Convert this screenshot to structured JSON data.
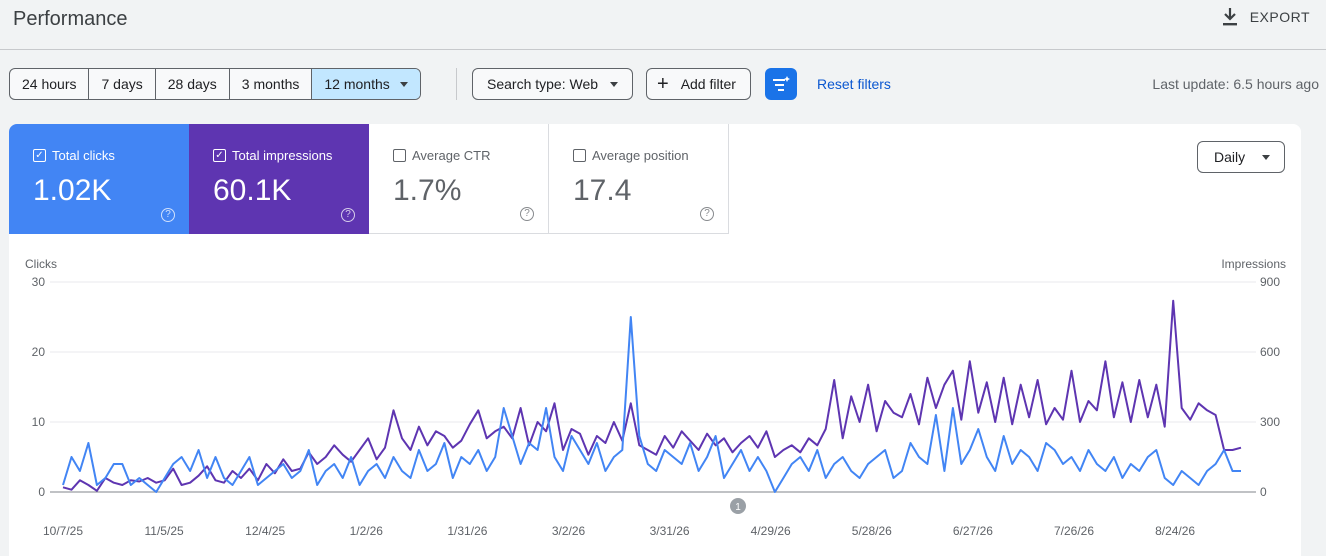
{
  "header": {
    "title": "Performance",
    "export_label": "EXPORT",
    "export_icon": "download-icon"
  },
  "toolbar": {
    "date_ranges": [
      "24 hours",
      "7 days",
      "28 days",
      "3 months",
      "12 months"
    ],
    "selected_range": "12 months",
    "search_type": "Search type: Web",
    "add_filter": "Add filter",
    "reset_filters": "Reset filters",
    "last_update": "Last update: 6.5 hours ago"
  },
  "metrics": {
    "clicks": {
      "label": "Total clicks",
      "value": "1.02K",
      "checked": true,
      "color": "#4285f4"
    },
    "impressions": {
      "label": "Total impressions",
      "value": "60.1K",
      "checked": true,
      "color": "#5e35b1"
    },
    "ctr": {
      "label": "Average CTR",
      "value": "1.7%",
      "checked": false
    },
    "position": {
      "label": "Average position",
      "value": "17.4",
      "checked": false
    }
  },
  "granularity": "Daily",
  "chart_data": {
    "type": "line",
    "left_axis_label": "Clicks",
    "right_axis_label": "Impressions",
    "left_ticks": [
      "30",
      "20",
      "10",
      "0"
    ],
    "right_ticks": [
      "900",
      "600",
      "300",
      "0"
    ],
    "ylim_left": [
      0,
      30
    ],
    "ylim_right": [
      0,
      900
    ],
    "x_ticks": [
      "10/7/25",
      "11/5/25",
      "12/4/25",
      "1/2/26",
      "1/31/26",
      "3/2/26",
      "3/31/26",
      "4/29/26",
      "5/28/26",
      "6/27/26",
      "7/26/26",
      "8/24/26"
    ],
    "annotation": "1",
    "grid": true,
    "series": [
      {
        "name": "Clicks",
        "color": "#4285f4",
        "values": [
          1,
          5,
          3,
          7,
          1,
          2,
          4,
          4,
          1,
          2,
          1,
          0,
          2,
          4,
          5,
          3,
          6,
          2,
          5,
          2,
          1,
          3,
          5,
          1,
          2,
          3,
          4,
          2,
          3,
          6,
          1,
          3,
          4,
          2,
          5,
          1,
          3,
          4,
          2,
          5,
          3,
          2,
          6,
          3,
          4,
          7,
          2,
          5,
          4,
          6,
          3,
          5,
          12,
          8,
          4,
          7,
          6,
          12,
          5,
          3,
          8,
          6,
          4,
          7,
          3,
          5,
          6,
          25,
          8,
          4,
          3,
          6,
          5,
          4,
          7,
          3,
          5,
          8,
          2,
          4,
          6,
          3,
          5,
          3,
          0,
          2,
          4,
          5,
          3,
          6,
          2,
          4,
          5,
          3,
          2,
          4,
          5,
          6,
          2,
          3,
          7,
          5,
          4,
          11,
          3,
          12,
          4,
          6,
          9,
          5,
          3,
          8,
          4,
          6,
          5,
          3,
          7,
          6,
          4,
          5,
          3,
          6,
          4,
          3,
          5,
          2,
          4,
          3,
          5,
          6,
          2,
          1,
          3,
          2,
          1,
          3,
          4,
          6,
          3,
          3
        ]
      },
      {
        "name": "Impressions",
        "color": "#5e35b1",
        "values": [
          20,
          10,
          50,
          30,
          5,
          60,
          40,
          30,
          50,
          45,
          60,
          40,
          50,
          100,
          30,
          40,
          70,
          110,
          50,
          40,
          90,
          60,
          100,
          50,
          120,
          80,
          140,
          90,
          100,
          170,
          120,
          150,
          200,
          160,
          130,
          180,
          230,
          140,
          190,
          350,
          230,
          180,
          280,
          200,
          260,
          240,
          190,
          220,
          290,
          350,
          230,
          260,
          280,
          230,
          360,
          200,
          300,
          260,
          380,
          180,
          270,
          250,
          160,
          240,
          210,
          300,
          220,
          380,
          200,
          180,
          160,
          240,
          190,
          260,
          220,
          180,
          250,
          200,
          230,
          170,
          210,
          240,
          190,
          260,
          150,
          180,
          200,
          170,
          230,
          200,
          270,
          480,
          230,
          410,
          300,
          460,
          260,
          390,
          340,
          320,
          420,
          290,
          490,
          360,
          460,
          520,
          310,
          560,
          340,
          470,
          300,
          490,
          290,
          460,
          320,
          480,
          290,
          360,
          310,
          520,
          300,
          390,
          350,
          560,
          320,
          470,
          300,
          480,
          320,
          460,
          280,
          820,
          360,
          310,
          380,
          350,
          330,
          180,
          180,
          190
        ]
      }
    ]
  }
}
